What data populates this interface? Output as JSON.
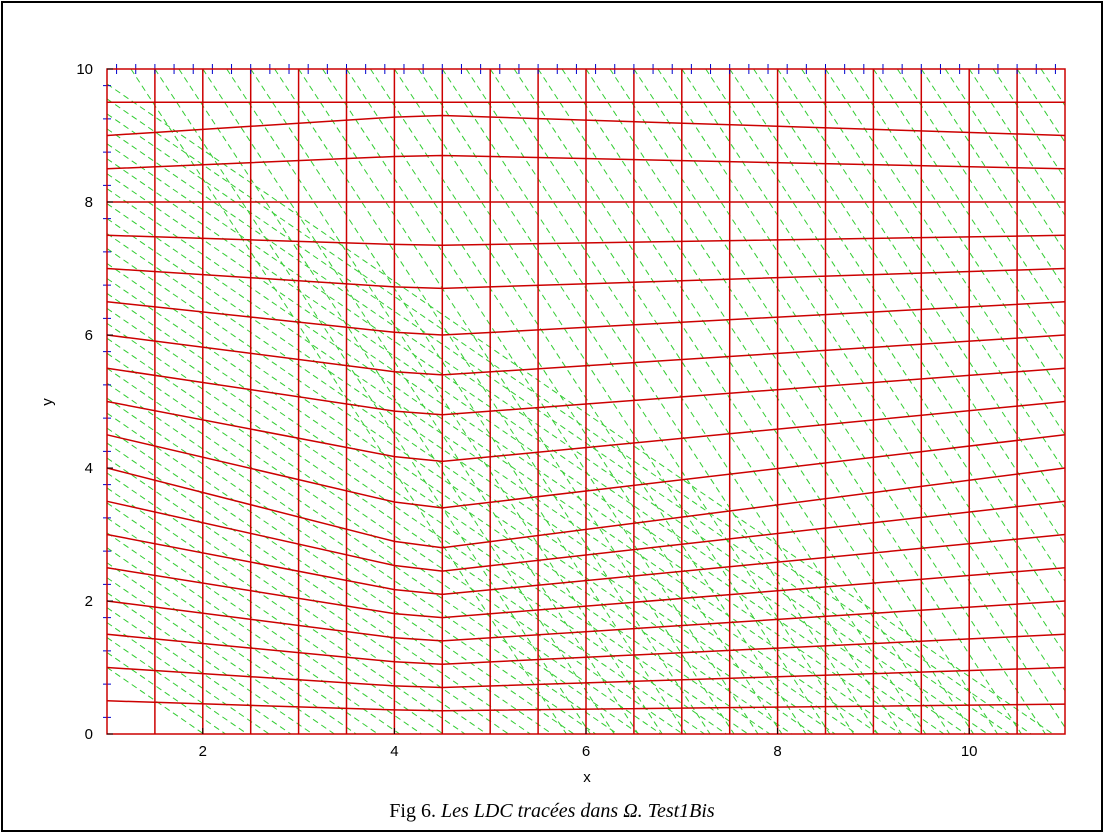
{
  "chart_data": {
    "type": "line",
    "xlabel": "x",
    "ylabel": "y",
    "xlim": [
      1,
      11
    ],
    "ylim": [
      0,
      10
    ],
    "x_ticks": [
      "2",
      "4",
      "6",
      "8",
      "10"
    ],
    "y_ticks": [
      "0",
      "2",
      "4",
      "6",
      "8",
      "10"
    ],
    "grid": false,
    "series": [
      {
        "kind": "vertical-lines",
        "color": "#cc0000",
        "x": [
          1.5,
          2,
          2.5,
          3,
          3.5,
          4,
          4.5,
          5,
          5.5,
          6,
          6.5,
          7,
          7.5,
          8,
          8.5,
          9,
          9.5,
          10,
          10.5
        ]
      },
      {
        "kind": "curved-level-lines",
        "color": "#cc0000",
        "x": [
          1,
          4,
          4.5,
          11
        ],
        "y_at_left": [
          0.5,
          1,
          1.5,
          2,
          2.5,
          3,
          3.5,
          4,
          4.5,
          5,
          5.5,
          6,
          6.5,
          7,
          7.5,
          8,
          8.5,
          9,
          9.5
        ],
        "y_at_kink": [
          0.35,
          0.7,
          1.05,
          1.4,
          1.75,
          2.1,
          2.45,
          2.8,
          3.4,
          4.1,
          4.8,
          5.4,
          6.0,
          6.7,
          7.35,
          8.0,
          8.7,
          9.3,
          9.5
        ],
        "y_at_right": [
          0.45,
          1.0,
          1.5,
          2.0,
          2.5,
          3.0,
          3.5,
          4.0,
          4.5,
          5.0,
          5.5,
          6.0,
          6.5,
          7.0,
          7.5,
          8.0,
          8.5,
          9.0,
          9.5
        ]
      },
      {
        "kind": "dashed-characteristics",
        "color": "#33cc33",
        "x_start_at_top": [
          1.25,
          1.5,
          1.75,
          2.0,
          2.25,
          2.5,
          2.75,
          3.0,
          3.25,
          3.5,
          3.75,
          4.0,
          4.25,
          4.5,
          4.75,
          5.0,
          5.25,
          5.5,
          5.75,
          6.0,
          6.25,
          6.5,
          6.75,
          7.0,
          7.25,
          7.5,
          7.75,
          8.0,
          8.25,
          8.5,
          8.75,
          9.0,
          9.25,
          9.5,
          9.75,
          10.0,
          10.25,
          10.5,
          10.75,
          11.0
        ],
        "slope": -2.2
      },
      {
        "kind": "boundary-markers",
        "color": "#0000cc",
        "top_x": [
          1.1,
          1.3,
          1.5,
          1.7,
          1.9,
          2.1,
          2.3,
          2.5,
          2.7,
          2.9,
          3.1,
          3.3,
          3.5,
          3.7,
          3.9,
          4.1,
          4.3,
          4.5,
          4.7,
          4.9,
          5.1,
          5.3,
          5.5,
          5.7,
          5.9,
          6.1,
          6.3,
          6.5,
          6.7,
          6.9,
          7.1,
          7.3,
          7.5,
          7.7,
          7.9,
          8.1,
          8.3,
          8.5,
          8.7,
          8.9,
          9.1,
          9.3,
          9.5,
          9.7,
          9.9,
          10.1,
          10.3,
          10.5,
          10.7,
          10.9
        ],
        "left_y": [
          0.25,
          0.75,
          1.25,
          1.75,
          2.25,
          2.75,
          3.25,
          3.75,
          4.25,
          4.75,
          5.25,
          5.75,
          6.25,
          6.75,
          7.25,
          7.75,
          8.25,
          8.75,
          9.25,
          9.75
        ]
      }
    ]
  },
  "caption": {
    "prefix": "Fig 6.",
    "text": "Les LDC tracées dans Ω. Test1Bis"
  }
}
